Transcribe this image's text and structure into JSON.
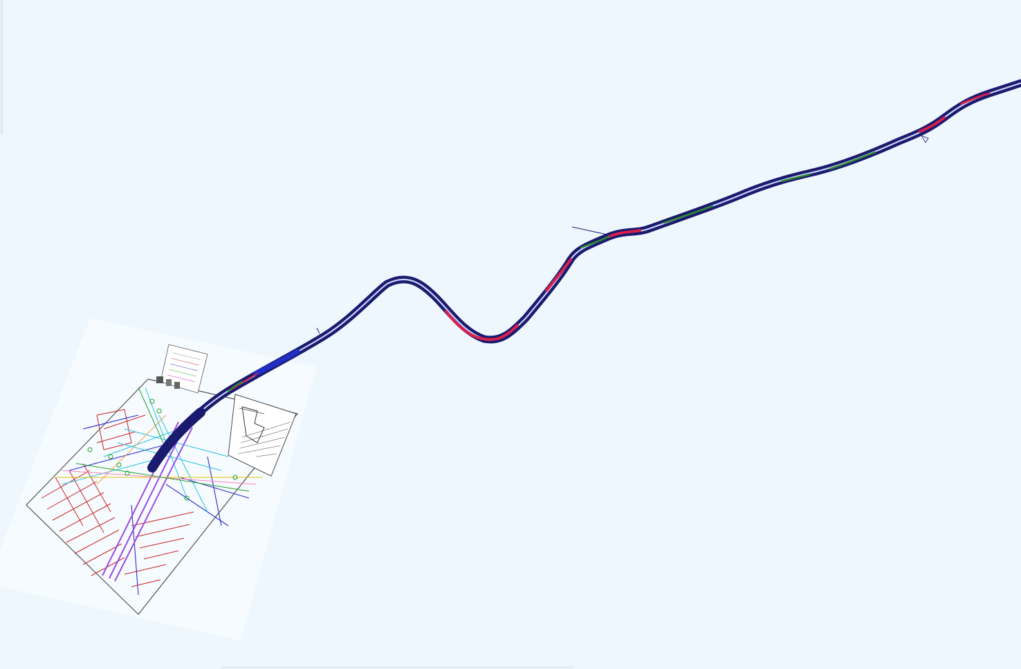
{
  "canvas": {
    "background_color": "#eef7fe",
    "sheet_color": "#f6fbff"
  },
  "route": {
    "outer_color": "#1a1a6e",
    "inner_color": "#c8d3f6",
    "highlight_red": "#d8204e",
    "highlight_green": "#2e8b2e",
    "highlight_blue": "#1f2fc8"
  },
  "drawing_sheet": {
    "line_colors": [
      "#c82020",
      "#2a2ad0",
      "#20c0e0",
      "#8a2be2",
      "#e0c000",
      "#20a020",
      "#ff7fbf",
      "#606060"
    ],
    "icons": [
      "drawing-sheet-icon",
      "title-block-icon",
      "legend-icon",
      "location-map-icon"
    ]
  }
}
